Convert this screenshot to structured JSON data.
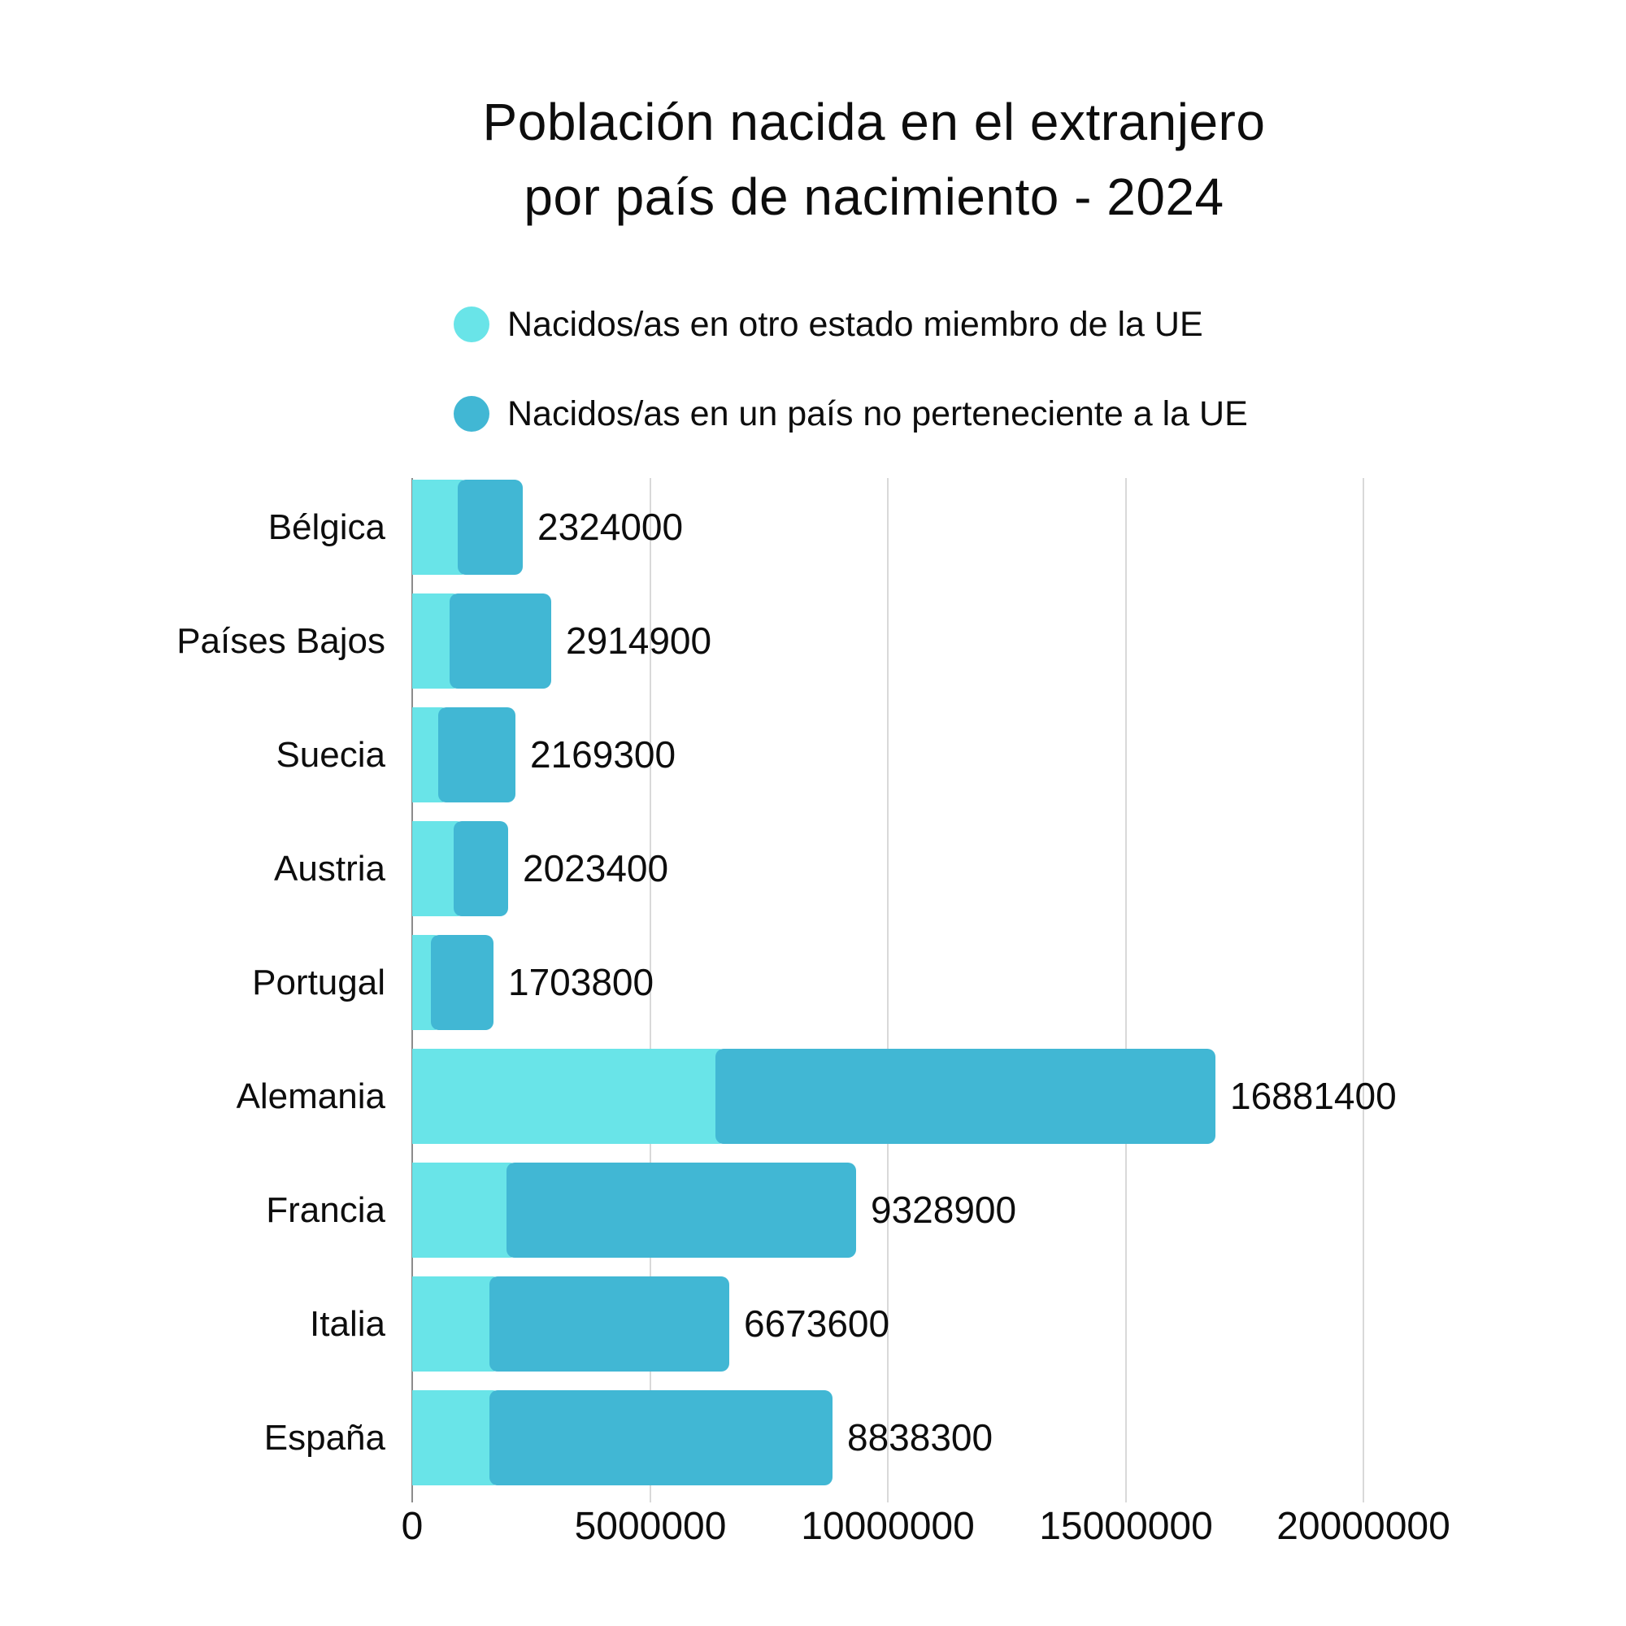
{
  "title": {
    "line1": "Población nacida en el extranjero",
    "line2": "por país de nacimiento - 2024"
  },
  "legend": [
    {
      "label": "Nacidos/as en otro estado miembro de la UE",
      "color": "#69E4E8"
    },
    {
      "label": "Nacidos/as en un país no perteneciente a la UE",
      "color": "#41B7D4"
    }
  ],
  "chart_data": {
    "type": "bar",
    "orientation": "horizontal",
    "stacked": true,
    "title": "Población nacida en el extranjero por país de nacimiento - 2024",
    "categories": [
      "Bélgica",
      "Países Bajos",
      "Suecia",
      "Austria",
      "Portugal",
      "Alemania",
      "Francia",
      "Italia",
      "España"
    ],
    "series": [
      {
        "name": "Nacidos/as en otro estado miembro de la UE",
        "color": "#69E4E8",
        "values": [
          950000,
          790000,
          550000,
          870000,
          390000,
          6370000,
          1980000,
          1620000,
          1620000
        ]
      },
      {
        "name": "Nacidos/as en un país no perteneciente a la UE",
        "color": "#41B7D4",
        "values": [
          1374000,
          2124900,
          1619300,
          1153400,
          1313800,
          10511400,
          7348900,
          5053600,
          7218300
        ]
      }
    ],
    "totals": [
      2324000,
      2914900,
      2169300,
      2023400,
      1703800,
      16881400,
      9328900,
      6673600,
      8838300
    ],
    "total_labels": [
      "2324000",
      "2914900",
      "2169300",
      "2023400",
      "1703800",
      "16881400",
      "9328900",
      "6673600",
      "8838300"
    ],
    "x_axis": {
      "tick_values": [
        0,
        5000000,
        10000000,
        15000000,
        20000000
      ],
      "tick_labels": [
        "0",
        "5000000",
        "10000000",
        "15000000",
        "20000000"
      ],
      "min": 0,
      "max": 20000000,
      "grid": "vertical"
    },
    "legend_position": "top-left"
  }
}
